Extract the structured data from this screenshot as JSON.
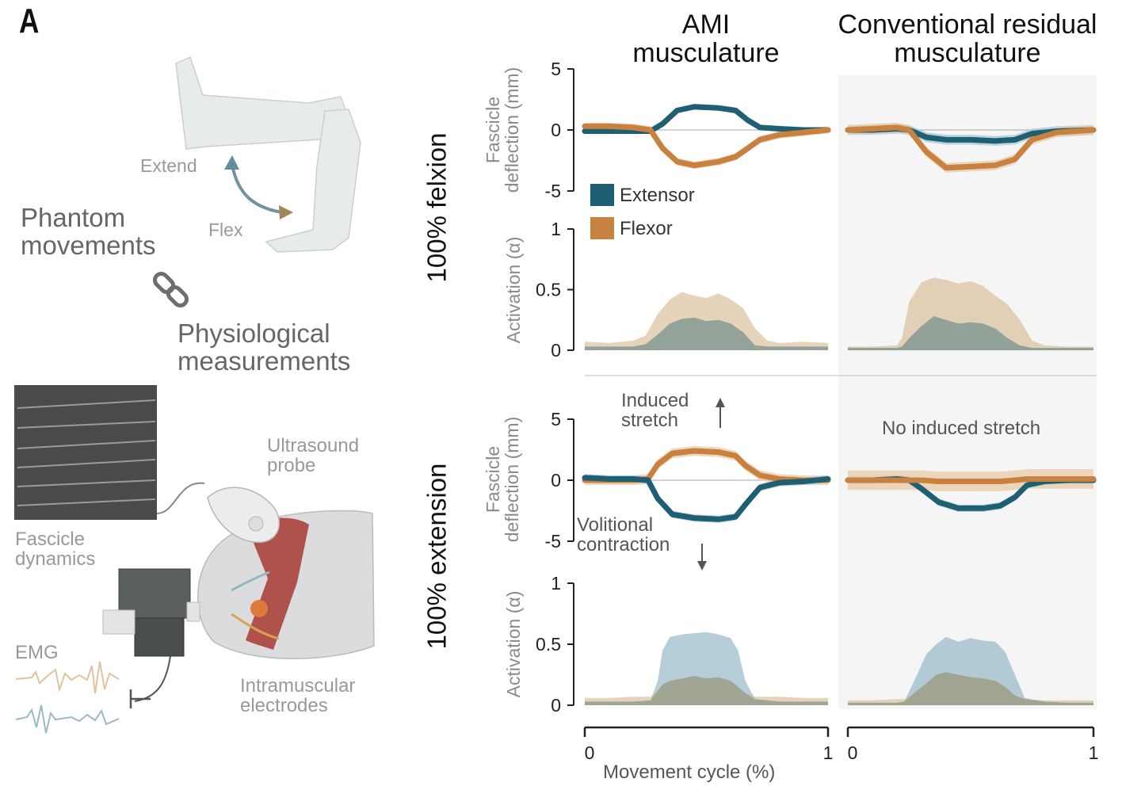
{
  "panel_letter": "A",
  "left": {
    "extend": "Extend",
    "flex": "Flex",
    "phantom": "Phantom\nmovements",
    "physio": "Physiological\nmeasurements",
    "ultrasound": "Ultrasound\nprobe",
    "fascicle_dyn": "Fascicle\ndynamics",
    "emg": "EMG",
    "electrodes": "Intramuscular\nelectrodes"
  },
  "columns": {
    "ami": "AMI\nmusculature",
    "conv": "Conventional residual\nmusculature"
  },
  "rows": {
    "flexion": "100% felxion",
    "extension": "100% extension"
  },
  "annotations": {
    "induced": "Induced\nstretch",
    "volitional": "Volitional\ncontraction",
    "no_induced": "No induced stretch"
  },
  "colors": {
    "extensor": "#1f5f73",
    "flexor": "#c8813f",
    "extensor_band": "#a9c7d3",
    "flexor_band": "#e7cba8",
    "conv_bg": "#f5f5f5"
  },
  "chart_data": [
    {
      "type": "line",
      "id": "ami-flexion-deflection",
      "ylabel": "Fascicle\ndeflection (mm)",
      "ylim": [
        -5,
        5
      ],
      "yticks": [
        5,
        0,
        -5
      ],
      "xlim": [
        0,
        1
      ],
      "legend": [
        {
          "name": "Extensor",
          "color": "#1f5f73"
        },
        {
          "name": "Flexor",
          "color": "#c8813f"
        }
      ],
      "series": [
        {
          "name": "Extensor",
          "x": [
            0,
            0.1,
            0.2,
            0.27,
            0.32,
            0.38,
            0.45,
            0.55,
            0.62,
            0.67,
            0.72,
            0.8,
            0.9,
            1
          ],
          "y": [
            -0.1,
            -0.1,
            -0.1,
            -0.1,
            0.5,
            1.6,
            1.9,
            1.8,
            1.6,
            0.8,
            0.2,
            0.1,
            0,
            0
          ],
          "band": 0.2
        },
        {
          "name": "Flexor",
          "x": [
            0,
            0.1,
            0.2,
            0.27,
            0.32,
            0.38,
            0.45,
            0.55,
            0.62,
            0.67,
            0.72,
            0.8,
            0.9,
            1
          ],
          "y": [
            0.3,
            0.3,
            0.2,
            0,
            -1.5,
            -2.6,
            -2.9,
            -2.6,
            -2.2,
            -1.5,
            -0.8,
            -0.4,
            -0.2,
            0
          ],
          "band": 0.3
        }
      ]
    },
    {
      "type": "line",
      "id": "conv-flexion-deflection",
      "ylim": [
        -5,
        5
      ],
      "xlim": [
        0,
        1
      ],
      "series": [
        {
          "name": "Extensor",
          "x": [
            0,
            0.1,
            0.2,
            0.25,
            0.32,
            0.4,
            0.5,
            0.6,
            0.68,
            0.75,
            0.85,
            1
          ],
          "y": [
            0,
            0,
            0.1,
            0,
            -0.6,
            -0.8,
            -0.8,
            -0.9,
            -0.8,
            -0.3,
            -0.1,
            0
          ],
          "band": 0.4
        },
        {
          "name": "Flexor",
          "x": [
            0,
            0.1,
            0.2,
            0.25,
            0.32,
            0.4,
            0.5,
            0.6,
            0.68,
            0.75,
            0.85,
            1
          ],
          "y": [
            0,
            0.1,
            0.2,
            0,
            -1.8,
            -3.1,
            -3.0,
            -2.9,
            -2.4,
            -0.8,
            -0.2,
            0
          ],
          "band": 0.4
        }
      ]
    },
    {
      "type": "area",
      "id": "ami-flexion-activation",
      "ylabel": "Activation (α)",
      "ylim": [
        0,
        1
      ],
      "yticks": [
        1,
        0.5,
        0
      ],
      "xlim": [
        0,
        1
      ],
      "series": [
        {
          "name": "Flexor",
          "x": [
            0,
            0.1,
            0.2,
            0.25,
            0.3,
            0.35,
            0.4,
            0.45,
            0.5,
            0.55,
            0.6,
            0.65,
            0.7,
            0.75,
            0.8,
            0.9,
            1
          ],
          "y": [
            0.07,
            0.06,
            0.08,
            0.12,
            0.3,
            0.42,
            0.48,
            0.45,
            0.43,
            0.47,
            0.42,
            0.35,
            0.18,
            0.08,
            0.06,
            0.07,
            0.06
          ]
        },
        {
          "name": "Extensor",
          "x": [
            0,
            0.1,
            0.2,
            0.25,
            0.3,
            0.35,
            0.4,
            0.45,
            0.5,
            0.55,
            0.6,
            0.65,
            0.7,
            0.75,
            0.8,
            0.9,
            1
          ],
          "y": [
            0.03,
            0.03,
            0.03,
            0.05,
            0.13,
            0.22,
            0.26,
            0.27,
            0.24,
            0.25,
            0.22,
            0.15,
            0.04,
            0.03,
            0.03,
            0.03,
            0.03
          ]
        }
      ]
    },
    {
      "type": "area",
      "id": "conv-flexion-activation",
      "ylim": [
        0,
        1
      ],
      "xlim": [
        0,
        1
      ],
      "series": [
        {
          "name": "Flexor",
          "x": [
            0,
            0.1,
            0.2,
            0.22,
            0.25,
            0.3,
            0.35,
            0.4,
            0.45,
            0.5,
            0.55,
            0.6,
            0.65,
            0.7,
            0.75,
            0.8,
            0.9,
            1
          ],
          "y": [
            0.03,
            0.03,
            0.04,
            0.1,
            0.4,
            0.56,
            0.6,
            0.58,
            0.55,
            0.57,
            0.53,
            0.45,
            0.38,
            0.25,
            0.08,
            0.04,
            0.03,
            0.03
          ]
        },
        {
          "name": "Extensor",
          "x": [
            0,
            0.1,
            0.2,
            0.22,
            0.25,
            0.3,
            0.35,
            0.4,
            0.45,
            0.5,
            0.55,
            0.6,
            0.65,
            0.7,
            0.75,
            0.8,
            0.9,
            1
          ],
          "y": [
            0.02,
            0.02,
            0.02,
            0.03,
            0.1,
            0.2,
            0.28,
            0.25,
            0.22,
            0.23,
            0.22,
            0.18,
            0.1,
            0.04,
            0.02,
            0.02,
            0.02,
            0.02
          ]
        }
      ]
    },
    {
      "type": "line",
      "id": "ami-extension-deflection",
      "ylabel": "Fascicle\ndeflection (mm)",
      "ylim": [
        -5,
        5
      ],
      "yticks": [
        5,
        0,
        -5
      ],
      "xlim": [
        0,
        1
      ],
      "series": [
        {
          "name": "Flexor",
          "x": [
            0,
            0.1,
            0.2,
            0.26,
            0.3,
            0.36,
            0.45,
            0.55,
            0.62,
            0.66,
            0.72,
            0.8,
            0.9,
            1
          ],
          "y": [
            0,
            0,
            0,
            0.1,
            1.3,
            2.2,
            2.4,
            2.3,
            2.0,
            1.2,
            0.4,
            0.1,
            0,
            0
          ],
          "band": 0.4
        },
        {
          "name": "Extensor",
          "x": [
            0,
            0.1,
            0.2,
            0.26,
            0.3,
            0.36,
            0.45,
            0.55,
            0.62,
            0.66,
            0.72,
            0.8,
            0.9,
            1
          ],
          "y": [
            0.2,
            0.1,
            0.1,
            0,
            -1.5,
            -2.8,
            -3.1,
            -3.2,
            -3.0,
            -2.0,
            -0.6,
            -0.2,
            -0.1,
            0.1
          ],
          "band": 0.3
        }
      ]
    },
    {
      "type": "line",
      "id": "conv-extension-deflection",
      "ylim": [
        -5,
        5
      ],
      "xlim": [
        0,
        1
      ],
      "series": [
        {
          "name": "Extensor",
          "x": [
            0,
            0.1,
            0.2,
            0.25,
            0.3,
            0.37,
            0.45,
            0.55,
            0.62,
            0.68,
            0.73,
            0.8,
            0.9,
            1
          ],
          "y": [
            0,
            0,
            0.1,
            0,
            -0.7,
            -1.8,
            -2.3,
            -2.3,
            -2.1,
            -1.4,
            -0.4,
            -0.1,
            0,
            0
          ],
          "band": 0.3
        },
        {
          "name": "Flexor",
          "x": [
            0,
            0.1,
            0.2,
            0.25,
            0.3,
            0.37,
            0.45,
            0.55,
            0.62,
            0.68,
            0.73,
            0.8,
            0.9,
            1
          ],
          "y": [
            0,
            0,
            0,
            0,
            0,
            -0.1,
            -0.1,
            -0.1,
            -0.1,
            0,
            0.1,
            0.1,
            0.1,
            0.1
          ],
          "band": 0.8
        }
      ]
    },
    {
      "type": "area",
      "id": "ami-extension-activation",
      "ylabel": "Activation (α)",
      "ylim": [
        0,
        1
      ],
      "yticks": [
        1,
        0.5,
        0
      ],
      "xlim": [
        0,
        1
      ],
      "xlabel": "Movement cycle (%)",
      "xticks": [
        0,
        1
      ],
      "series": [
        {
          "name": "Extensor",
          "x": [
            0,
            0.1,
            0.2,
            0.27,
            0.3,
            0.32,
            0.35,
            0.4,
            0.45,
            0.5,
            0.55,
            0.6,
            0.63,
            0.66,
            0.7,
            0.8,
            0.9,
            1
          ],
          "y": [
            0.03,
            0.03,
            0.03,
            0.04,
            0.2,
            0.45,
            0.56,
            0.58,
            0.59,
            0.6,
            0.58,
            0.55,
            0.45,
            0.2,
            0.05,
            0.03,
            0.03,
            0.03
          ]
        },
        {
          "name": "Flexor",
          "x": [
            0,
            0.1,
            0.2,
            0.27,
            0.3,
            0.32,
            0.35,
            0.4,
            0.45,
            0.5,
            0.55,
            0.6,
            0.63,
            0.66,
            0.7,
            0.8,
            0.9,
            1
          ],
          "y": [
            0.06,
            0.06,
            0.07,
            0.07,
            0.12,
            0.17,
            0.2,
            0.22,
            0.24,
            0.22,
            0.23,
            0.2,
            0.15,
            0.1,
            0.07,
            0.07,
            0.06,
            0.06
          ]
        }
      ]
    },
    {
      "type": "area",
      "id": "conv-extension-activation",
      "ylim": [
        0,
        1
      ],
      "xlim": [
        0,
        1
      ],
      "xticks": [
        0,
        1
      ],
      "series": [
        {
          "name": "Extensor",
          "x": [
            0,
            0.1,
            0.2,
            0.23,
            0.27,
            0.32,
            0.36,
            0.4,
            0.45,
            0.5,
            0.55,
            0.6,
            0.64,
            0.68,
            0.72,
            0.8,
            0.9,
            1
          ],
          "y": [
            0.02,
            0.02,
            0.02,
            0.03,
            0.2,
            0.42,
            0.5,
            0.56,
            0.52,
            0.55,
            0.53,
            0.52,
            0.44,
            0.25,
            0.06,
            0.03,
            0.02,
            0.02
          ]
        },
        {
          "name": "Flexor",
          "x": [
            0,
            0.1,
            0.2,
            0.23,
            0.27,
            0.32,
            0.36,
            0.4,
            0.45,
            0.5,
            0.55,
            0.6,
            0.64,
            0.68,
            0.72,
            0.8,
            0.9,
            1
          ],
          "y": [
            0.04,
            0.04,
            0.05,
            0.05,
            0.1,
            0.18,
            0.25,
            0.27,
            0.25,
            0.23,
            0.22,
            0.2,
            0.15,
            0.08,
            0.05,
            0.04,
            0.04,
            0.04
          ]
        }
      ]
    }
  ]
}
